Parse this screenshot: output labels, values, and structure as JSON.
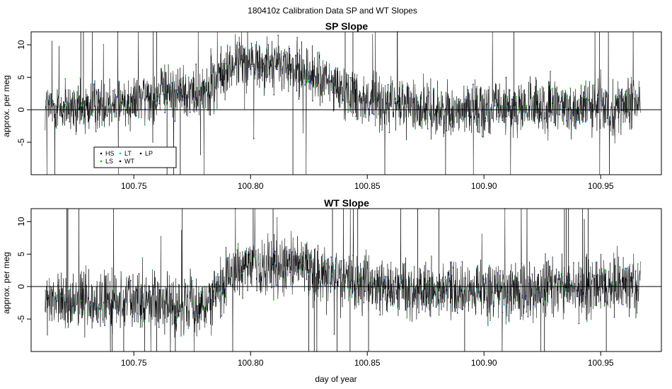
{
  "chart_data": {
    "suptitle": "180410z   Calibration Data SP and WT Slopes",
    "xlabel": "day of year",
    "panels": [
      {
        "title": "SP Slope",
        "type": "line",
        "ylabel": "approx. per meg",
        "xlim": [
          100.706,
          100.976
        ],
        "ylim": [
          -10,
          12
        ],
        "xticks": [
          100.75,
          100.8,
          100.85,
          100.9,
          100.95
        ],
        "xtick_labels": [
          "100.75",
          "100.80",
          "100.85",
          "100.90",
          "100.95"
        ],
        "yticks": [
          -5,
          0,
          5,
          10
        ],
        "ytick_labels": [
          "-5",
          "0",
          "5",
          "10"
        ],
        "reference_line_y": 0,
        "data_x_range": [
          100.712,
          100.967
        ],
        "trend": [
          {
            "x": 100.712,
            "y": 0.5
          },
          {
            "x": 100.725,
            "y": -0.3
          },
          {
            "x": 100.735,
            "y": 0.8
          },
          {
            "x": 100.75,
            "y": 1.5
          },
          {
            "x": 100.765,
            "y": 3.0
          },
          {
            "x": 100.778,
            "y": 2.5
          },
          {
            "x": 100.785,
            "y": 4.5
          },
          {
            "x": 100.795,
            "y": 7.5
          },
          {
            "x": 100.81,
            "y": 7.0
          },
          {
            "x": 100.825,
            "y": 5.5
          },
          {
            "x": 100.84,
            "y": 3.0
          },
          {
            "x": 100.85,
            "y": 1.5
          },
          {
            "x": 100.865,
            "y": 0.8
          },
          {
            "x": 100.88,
            "y": 0.0
          },
          {
            "x": 100.9,
            "y": 0.2
          },
          {
            "x": 100.93,
            "y": 0.3
          },
          {
            "x": 100.967,
            "y": 0.5
          }
        ],
        "noise_sd": 2.0,
        "legend": {
          "position": "bottom-left",
          "entries": [
            {
              "label": "HS",
              "color": "#000000"
            },
            {
              "label": "LT",
              "color": "#00bcd4"
            },
            {
              "label": "LP",
              "color": "#000000"
            },
            {
              "label": "LS",
              "color": "#00c800"
            },
            {
              "label": "WT",
              "color": "#000000"
            }
          ]
        }
      },
      {
        "title": "WT Slope",
        "type": "line",
        "ylabel": "approx. per meg",
        "xlim": [
          100.706,
          100.976
        ],
        "ylim": [
          -10,
          12
        ],
        "xticks": [
          100.75,
          100.8,
          100.85,
          100.9,
          100.95
        ],
        "xtick_labels": [
          "100.75",
          "100.80",
          "100.85",
          "100.90",
          "100.95"
        ],
        "yticks": [
          -5,
          0,
          5,
          10
        ],
        "ytick_labels": [
          "-5",
          "0",
          "5",
          "10"
        ],
        "reference_line_y": 0,
        "data_x_range": [
          100.712,
          100.967
        ],
        "trend": [
          {
            "x": 100.712,
            "y": -2.5
          },
          {
            "x": 100.73,
            "y": -2.5
          },
          {
            "x": 100.75,
            "y": -2.0
          },
          {
            "x": 100.77,
            "y": -3.0
          },
          {
            "x": 100.783,
            "y": -2.5
          },
          {
            "x": 100.79,
            "y": 2.0
          },
          {
            "x": 100.805,
            "y": 3.0
          },
          {
            "x": 100.82,
            "y": 3.5
          },
          {
            "x": 100.832,
            "y": 1.5
          },
          {
            "x": 100.85,
            "y": 0.5
          },
          {
            "x": 100.87,
            "y": -1.0
          },
          {
            "x": 100.89,
            "y": -0.5
          },
          {
            "x": 100.92,
            "y": -0.5
          },
          {
            "x": 100.95,
            "y": 0.0
          },
          {
            "x": 100.967,
            "y": 0.5
          }
        ],
        "noise_sd": 2.2
      }
    ],
    "series_colors": {
      "HS": "#000000",
      "LS": "#00c800",
      "LT": "#00bcd4",
      "WT": "#000000",
      "LP": "#000000",
      "marker_blue": "#2222cc"
    }
  }
}
